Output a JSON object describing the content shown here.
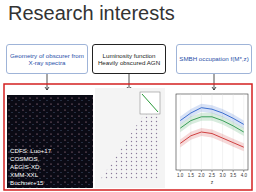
{
  "title": "Research interests",
  "boxes": [
    {
      "label": "Geometry of obscurer from X-ray spectra"
    },
    {
      "label": "Luminosity function Heavily obscured AGN"
    },
    {
      "label": "SMBH occupation f(M*,z)"
    }
  ],
  "image_caption": [
    "CDFS: Luo+17",
    "COSMOS,",
    "AEGIS-XD,",
    "XMM-XXL",
    "Buchner+15"
  ],
  "chart_data": {
    "type": "line",
    "x_label": "z",
    "x": [
      1.0,
      1.5,
      2.0,
      2.5,
      3.0,
      3.5,
      4.0
    ],
    "xlim": [
      0.8,
      4.2
    ],
    "xticks": [
      {
        "value": 1,
        "label": "1.0"
      },
      {
        "value": 1.5,
        "label": "1.5"
      },
      {
        "value": 2,
        "label": "2.0"
      },
      {
        "value": 2.5,
        "label": "2.5"
      },
      {
        "value": 3,
        "label": "3.0"
      },
      {
        "value": 3.5,
        "label": "3.5"
      },
      {
        "value": 4,
        "label": "4.0"
      }
    ],
    "ylim": [
      0,
      10
    ],
    "tick_labels": "x",
    "grid": true,
    "series": [
      {
        "color": "#3b6fd0",
        "values": [
          6.5,
          7.5,
          8.2,
          8.0,
          7.5,
          6.8,
          6.0
        ]
      },
      {
        "color": "#3aa05a",
        "values": [
          5.5,
          6.5,
          7.0,
          7.0,
          6.5,
          5.8,
          5.0
        ]
      },
      {
        "color": "#d04040",
        "values": [
          3.5,
          4.5,
          5.0,
          4.8,
          4.2,
          3.6,
          3.0
        ]
      }
    ]
  }
}
